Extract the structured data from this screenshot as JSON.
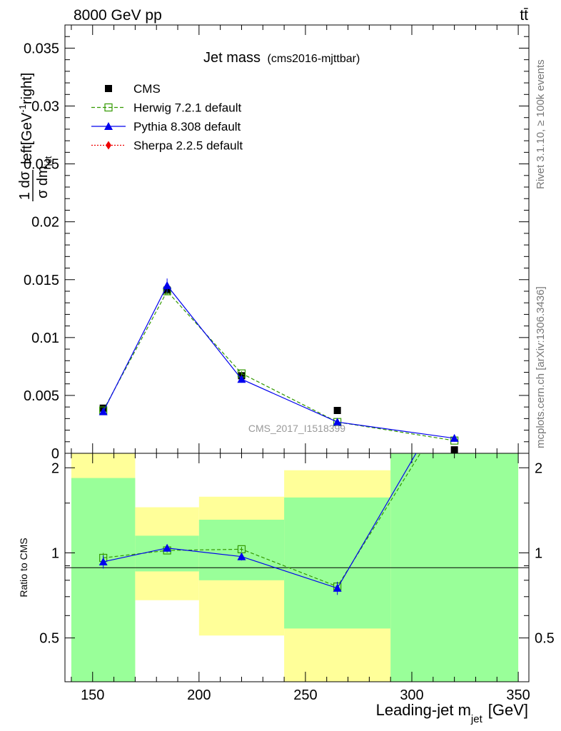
{
  "header": {
    "left": "8000 GeV pp",
    "right": "tt̄"
  },
  "side": {
    "rivet": "Rivet 3.1.10, ≥ 100k events",
    "mcplots": "mcplots.cern.ch [arXiv:1306.3436]"
  },
  "watermark": "CMS_2017_I1518399",
  "colors": {
    "cms": "#000000",
    "herwig": "#339900",
    "pythia": "#0000ee",
    "sherpa": "#ee0000",
    "band_green": "#99ff99",
    "band_yellow": "#ffff99"
  },
  "chart_data": [
    {
      "type": "line",
      "title": "Jet mass",
      "subtitle": "(cms2016-mjttbar)",
      "ylabel_frac": "1 dσ",
      "ylabel_den": "σ dm",
      "ylabel_sub": "jet",
      "ylabel_unit": "left[GeV",
      "ylabel_exp": "-1",
      "ylabel_unit2": "right]",
      "xlim": [
        137,
        355
      ],
      "ylim": [
        0,
        0.037
      ],
      "yticks": [
        {
          "v": 0,
          "label": "0"
        },
        {
          "v": 0.005,
          "label": "0.005"
        },
        {
          "v": 0.01,
          "label": "0.01"
        },
        {
          "v": 0.015,
          "label": "0.015"
        },
        {
          "v": 0.02,
          "label": "0.02"
        },
        {
          "v": 0.025,
          "label": "0.025"
        },
        {
          "v": 0.03,
          "label": "0.03"
        },
        {
          "v": 0.035,
          "label": "0.035"
        }
      ],
      "legend": [
        {
          "key": "cms",
          "label": "CMS"
        },
        {
          "key": "herwig",
          "label": "Herwig 7.2.1 default"
        },
        {
          "key": "pythia",
          "label": "Pythia 8.308 default"
        },
        {
          "key": "sherpa",
          "label": "Sherpa 2.2.5 default"
        }
      ],
      "series": [
        {
          "name": "CMS",
          "key": "cms",
          "x": [
            155,
            185,
            220,
            265,
            320
          ],
          "y": [
            0.0039,
            0.0141,
            0.0067,
            0.0037,
            0.0003
          ],
          "xerr": [
            15,
            15,
            20,
            25,
            30
          ]
        },
        {
          "name": "Herwig 7.2.1 default",
          "key": "herwig",
          "x": [
            155,
            185,
            220,
            265,
            320
          ],
          "y": [
            0.0037,
            0.014,
            0.0069,
            0.0027,
            0.0011
          ],
          "err": [
            0.0002,
            0.0003,
            0.0002,
            0.0001,
            0.0001
          ]
        },
        {
          "name": "Pythia 8.308 default",
          "key": "pythia",
          "x": [
            155,
            185,
            220,
            265,
            320
          ],
          "y": [
            0.0036,
            0.0145,
            0.0064,
            0.0027,
            0.0013
          ],
          "err": [
            0.0003,
            0.0006,
            0.0003,
            0.0001,
            0.0001
          ]
        }
      ]
    },
    {
      "type": "line",
      "ylabel": "Ratio to CMS",
      "xlabel_main": "Leading-jet m",
      "xlabel_sub": "jet",
      "xlabel_unit": "[GeV]",
      "xlim": [
        137,
        355
      ],
      "ylim": [
        0.35,
        2.25
      ],
      "yticks": [
        {
          "v": 0.5,
          "label": "0.5"
        },
        {
          "v": 1,
          "label": "1"
        },
        {
          "v": 2,
          "label": "2"
        }
      ],
      "xticks": [
        {
          "v": 150,
          "label": "150"
        },
        {
          "v": 200,
          "label": "200"
        },
        {
          "v": 250,
          "label": "250"
        },
        {
          "v": 300,
          "label": "300"
        },
        {
          "v": 350,
          "label": "350"
        }
      ],
      "bands": [
        {
          "x0": 140,
          "x1": 170,
          "y_lo": 0.35,
          "y_hi": 2.25,
          "g_lo": 0.35,
          "g_hi": 1.84
        },
        {
          "x0": 170,
          "x1": 200,
          "y_lo": 0.68,
          "y_hi": 1.45,
          "g_lo": 0.86,
          "g_hi": 1.15
        },
        {
          "x0": 200,
          "x1": 240,
          "y_lo": 0.51,
          "y_hi": 1.58,
          "g_lo": 0.8,
          "g_hi": 1.31
        },
        {
          "x0": 240,
          "x1": 290,
          "y_lo": 0.35,
          "y_hi": 1.96,
          "g_lo": 0.54,
          "g_hi": 1.57
        },
        {
          "x0": 290,
          "x1": 350,
          "y_lo": 0.35,
          "y_hi": 2.25,
          "g_lo": 0.35,
          "g_hi": 2.25
        }
      ],
      "series": [
        {
          "name": "Herwig 7.2.1 default",
          "key": "herwig",
          "x": [
            155,
            185,
            220,
            265,
            304
          ],
          "y": [
            0.96,
            1.02,
            1.03,
            0.76,
            2.25
          ],
          "err": [
            0.04,
            0.02,
            0.02,
            0.03,
            0
          ],
          "markers": 4
        },
        {
          "name": "Pythia 8.308 default",
          "key": "pythia",
          "x": [
            155,
            185,
            220,
            265,
            302
          ],
          "y": [
            0.93,
            1.04,
            0.97,
            0.75,
            2.25
          ],
          "err": [
            0.05,
            0.03,
            0.03,
            0.04,
            0
          ],
          "markers": 4
        }
      ]
    }
  ]
}
